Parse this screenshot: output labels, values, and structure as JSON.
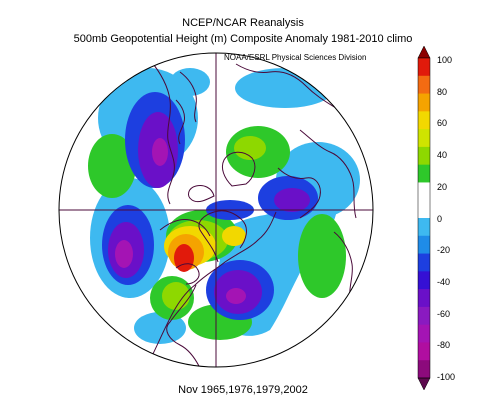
{
  "header": {
    "title_line1": "NCEP/NCAR Reanalysis",
    "title_line2": "500mb Geopotential Height (m) Composite Anomaly 1981-2010 climo",
    "credit": "NOAA/ESRL Physical Sciences Division"
  },
  "footer": {
    "dates": "Nov 1965,1976,1979,2002"
  },
  "colorbar": {
    "labels": [
      "100",
      "80",
      "60",
      "40",
      "20",
      "0",
      "-20",
      "-40",
      "-60",
      "-80",
      "-100"
    ],
    "colors": [
      "#8b0000",
      "#e11a0b",
      "#f36b12",
      "#f5a300",
      "#f2d800",
      "#cfe400",
      "#8ed800",
      "#2ec82a",
      "#ffffff",
      "#ffffff",
      "#3eb9f0",
      "#1f8ce8",
      "#1d3fe0",
      "#3510d4",
      "#6a10c8",
      "#8a1ac0",
      "#a414b4",
      "#b00ea0",
      "#8c0a7c",
      "#5c0a4e"
    ],
    "levels": [
      100,
      90,
      80,
      70,
      60,
      50,
      40,
      30,
      20,
      10,
      0,
      -10,
      -20,
      -30,
      -40,
      -50,
      -60,
      -70,
      -80,
      -90,
      -100
    ]
  },
  "colors": {
    "coastline": "#4a0a3a",
    "grid": "#4a0a3a"
  }
}
